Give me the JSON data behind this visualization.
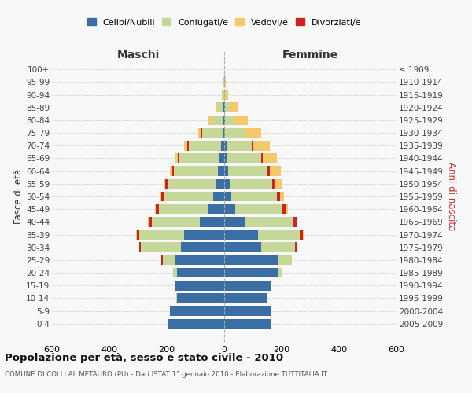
{
  "age_groups": [
    "0-4",
    "5-9",
    "10-14",
    "15-19",
    "20-24",
    "25-29",
    "30-34",
    "35-39",
    "40-44",
    "45-49",
    "50-54",
    "55-59",
    "60-64",
    "65-69",
    "70-74",
    "75-79",
    "80-84",
    "85-89",
    "90-94",
    "95-99",
    "100+"
  ],
  "birth_years": [
    "2005-2009",
    "2000-2004",
    "1995-1999",
    "1990-1994",
    "1985-1989",
    "1980-1984",
    "1975-1979",
    "1970-1974",
    "1965-1969",
    "1960-1964",
    "1955-1959",
    "1950-1954",
    "1945-1949",
    "1940-1944",
    "1935-1939",
    "1930-1934",
    "1925-1929",
    "1920-1924",
    "1915-1919",
    "1910-1914",
    "≤ 1909"
  ],
  "colors": {
    "celibi": "#3a6ea5",
    "coniugati": "#c5d89a",
    "vedovi": "#f5c96a",
    "divorziati": "#cc2222"
  },
  "maschi": {
    "celibi": [
      195,
      190,
      165,
      170,
      165,
      170,
      150,
      140,
      85,
      55,
      38,
      28,
      22,
      18,
      12,
      6,
      3,
      3,
      1,
      1,
      0
    ],
    "coniugati": [
      0,
      0,
      1,
      2,
      12,
      45,
      140,
      155,
      168,
      172,
      172,
      168,
      152,
      138,
      112,
      72,
      38,
      18,
      4,
      2,
      0
    ],
    "vedovi": [
      0,
      0,
      0,
      0,
      0,
      0,
      2,
      2,
      2,
      3,
      4,
      5,
      6,
      8,
      10,
      10,
      14,
      7,
      3,
      1,
      0
    ],
    "divorziati": [
      0,
      0,
      0,
      0,
      0,
      5,
      5,
      10,
      10,
      12,
      10,
      10,
      8,
      5,
      5,
      2,
      0,
      0,
      0,
      0,
      0
    ]
  },
  "femmine": {
    "nubili": [
      165,
      162,
      150,
      162,
      188,
      190,
      128,
      118,
      72,
      38,
      25,
      18,
      14,
      10,
      7,
      4,
      2,
      2,
      1,
      1,
      0
    ],
    "coniugate": [
      0,
      0,
      1,
      3,
      16,
      42,
      118,
      145,
      165,
      165,
      158,
      148,
      138,
      118,
      88,
      68,
      32,
      18,
      5,
      2,
      0
    ],
    "vedove": [
      0,
      0,
      0,
      0,
      0,
      2,
      2,
      3,
      4,
      6,
      12,
      25,
      36,
      50,
      58,
      54,
      48,
      28,
      8,
      3,
      0
    ],
    "divorziate": [
      0,
      0,
      0,
      0,
      0,
      2,
      5,
      10,
      15,
      12,
      12,
      10,
      8,
      5,
      5,
      2,
      0,
      0,
      0,
      0,
      0
    ]
  },
  "title": "Popolazione per età, sesso e stato civile - 2010",
  "subtitle": "COMUNE DI COLLI AL METAURO (PU) - Dati ISTAT 1° gennaio 2010 - Elaborazione TUTTITALIA.IT",
  "xlabel_maschi": "Maschi",
  "xlabel_femmine": "Femmine",
  "ylabel_left": "Fasce di età",
  "ylabel_right": "Anni di nascita",
  "xlim": 600,
  "legend_labels": [
    "Celibi/Nubili",
    "Coniugati/e",
    "Vedovi/e",
    "Divorziati/e"
  ],
  "bg_color": "#f8f8f8",
  "grid_color": "#cccccc"
}
